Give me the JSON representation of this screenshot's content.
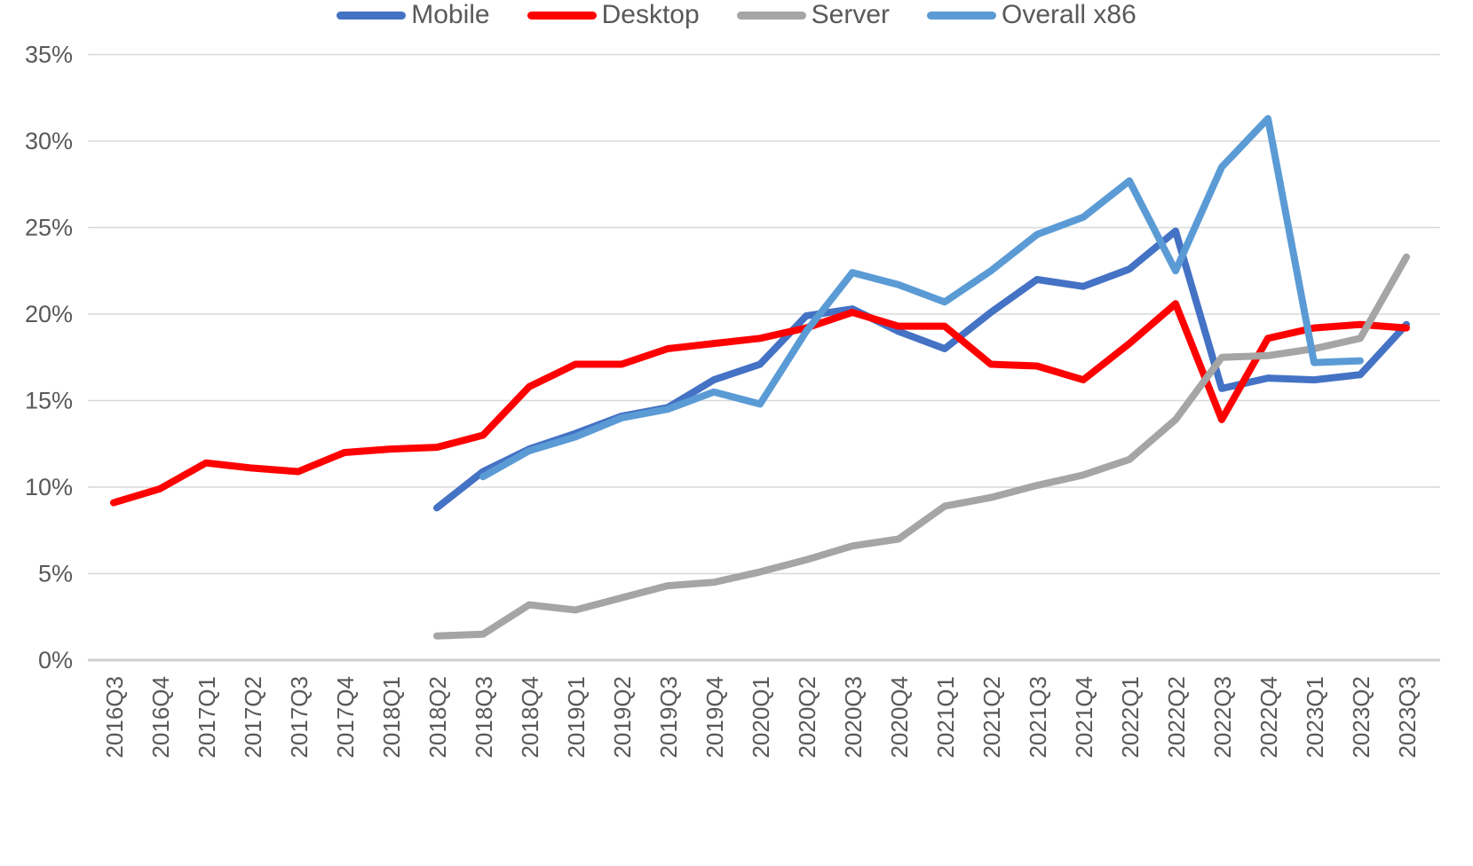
{
  "chart_data": {
    "type": "line",
    "title": "",
    "xlabel": "",
    "ylabel": "",
    "ylim": [
      0,
      35
    ],
    "y_tick_step": 5,
    "y_tick_labels": [
      "0%",
      "5%",
      "10%",
      "15%",
      "20%",
      "25%",
      "30%",
      "35%"
    ],
    "grid": true,
    "legend_position": "bottom",
    "categories": [
      "2016Q3",
      "2016Q4",
      "2017Q1",
      "2017Q2",
      "2017Q3",
      "2017Q4",
      "2018Q1",
      "2018Q2",
      "2018Q3",
      "2018Q4",
      "2019Q1",
      "2019Q2",
      "2019Q3",
      "2019Q4",
      "2020Q1",
      "2020Q2",
      "2020Q3",
      "2020Q4",
      "2021Q1",
      "2021Q2",
      "2021Q3",
      "2021Q4",
      "2022Q1",
      "2022Q2",
      "2022Q3",
      "2022Q4",
      "2023Q1",
      "2023Q2",
      "2023Q3"
    ],
    "series": [
      {
        "name": "Mobile",
        "color": "#4472C4",
        "start_index": 7,
        "values": [
          8.8,
          10.9,
          12.2,
          13.1,
          14.1,
          14.6,
          16.2,
          17.1,
          19.9,
          20.3,
          19.0,
          18.0,
          20.1,
          22.0,
          21.6,
          22.6,
          24.8,
          15.7,
          16.3,
          16.2,
          16.5,
          19.4
        ]
      },
      {
        "name": "Desktop",
        "color": "#FF0000",
        "start_index": 0,
        "values": [
          9.1,
          9.9,
          11.4,
          11.1,
          10.9,
          12.0,
          12.2,
          12.3,
          13.0,
          15.8,
          17.1,
          17.1,
          18.0,
          18.3,
          18.6,
          19.2,
          20.1,
          19.3,
          19.3,
          17.1,
          17.0,
          16.2,
          18.3,
          20.6,
          13.9,
          18.6,
          19.2,
          19.4,
          19.2
        ]
      },
      {
        "name": "Server",
        "color": "#A5A5A5",
        "start_index": 7,
        "values": [
          1.4,
          1.5,
          3.2,
          2.9,
          3.6,
          4.3,
          4.5,
          5.1,
          5.8,
          6.6,
          7.0,
          8.9,
          9.4,
          10.1,
          10.7,
          11.6,
          13.9,
          17.5,
          17.6,
          18.0,
          18.6,
          23.3
        ]
      },
      {
        "name": "Overall x86",
        "color": "#5B9BD5",
        "start_index": 8,
        "values": [
          10.6,
          12.1,
          12.9,
          14.0,
          14.5,
          15.5,
          14.8,
          19.0,
          22.4,
          21.7,
          20.7,
          22.5,
          24.6,
          25.6,
          27.7,
          22.5,
          28.5,
          31.3,
          17.2,
          17.3
        ]
      }
    ]
  }
}
